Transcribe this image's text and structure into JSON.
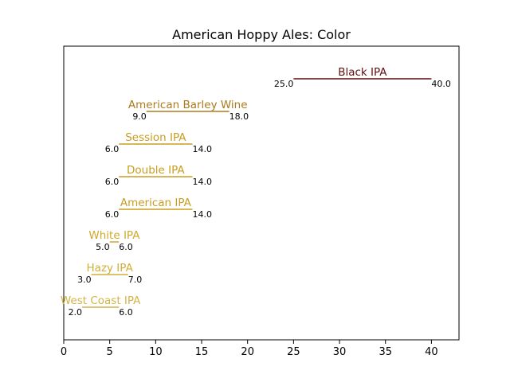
{
  "chart_data": {
    "type": "range",
    "title": "American Hoppy Ales: Color",
    "xlabel": "",
    "ylabel": "",
    "xlim": [
      0,
      43
    ],
    "xticks": [
      0,
      5,
      10,
      15,
      20,
      25,
      30,
      35,
      40
    ],
    "grid": false,
    "series": [
      {
        "name": "West Coast IPA",
        "low": 2.0,
        "high": 6.0,
        "low_label": "2.0",
        "high_label": "6.0",
        "color": "#d4b448"
      },
      {
        "name": "Hazy IPA",
        "low": 3.0,
        "high": 7.0,
        "low_label": "3.0",
        "high_label": "7.0",
        "color": "#d1ae36"
      },
      {
        "name": "White IPA",
        "low": 5.0,
        "high": 6.0,
        "low_label": "5.0",
        "high_label": "6.0",
        "color": "#cfa82a"
      },
      {
        "name": "American IPA",
        "low": 6.0,
        "high": 14.0,
        "low_label": "6.0",
        "high_label": "14.0",
        "color": "#c99d20"
      },
      {
        "name": "Double IPA",
        "low": 6.0,
        "high": 14.0,
        "low_label": "6.0",
        "high_label": "14.0",
        "color": "#c99d20"
      },
      {
        "name": "Session IPA",
        "low": 6.0,
        "high": 14.0,
        "low_label": "6.0",
        "high_label": "14.0",
        "color": "#c99d20"
      },
      {
        "name": "American Barley Wine",
        "low": 9.0,
        "high": 18.0,
        "low_label": "9.0",
        "high_label": "18.0",
        "color": "#ad7a1c"
      },
      {
        "name": "Black IPA",
        "low": 25.0,
        "high": 40.0,
        "low_label": "25.0",
        "high_label": "40.0",
        "color": "#5e0f0f"
      }
    ]
  }
}
